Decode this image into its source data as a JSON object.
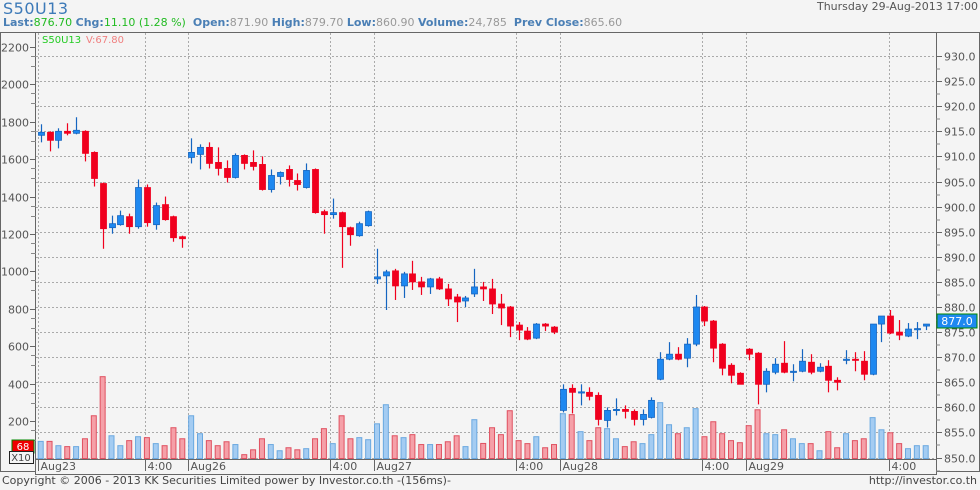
{
  "header": {
    "symbol": "S50U13",
    "last_label": "Last:",
    "last": "876.70",
    "chg_label": "Chg:",
    "chg": "11.10 (1.28 %)",
    "open_label": "Open:",
    "open": "871.90",
    "high_label": "High:",
    "high": "879.70",
    "low_label": "Low:",
    "low": "860.90",
    "volume_label": "Volume:",
    "volume": "24,785",
    "prev_label": "Prev Close:",
    "prev": "865.60",
    "datetime": "Thursday 29-Aug-2013 17:00"
  },
  "legend": {
    "symbol": "S50U13",
    "volume": "V:67.80"
  },
  "left_badge": {
    "value": "68",
    "multiplier": "X10"
  },
  "price_badge": "877.0",
  "footer": {
    "copyright": "Copyright © 2006 - 2013 KK Securities Limited power by Investor.co.th  -(156ms)-",
    "url": "http://investor.co.th"
  },
  "colors": {
    "up": "#1e88f0",
    "up_border": "#1565c0",
    "down": "#f0001e",
    "down_border": "#c8001a",
    "vol_up": "#a4ccf2",
    "vol_up_border": "#6aa8e0",
    "vol_down": "#f5a0a8",
    "vol_down_border": "#e05060"
  },
  "chart_data": {
    "type": "candlestick",
    "price_axis": {
      "ticks": [
        "930.0",
        "925.0",
        "920.0",
        "915.0",
        "910.0",
        "905.0",
        "900.0",
        "895.0",
        "890.0",
        "885.0",
        "880.0",
        "875.0",
        "870.0",
        "865.0",
        "860.0",
        "855.0",
        "850.0"
      ],
      "range": [
        850,
        930
      ]
    },
    "volume_axis": {
      "ticks": [
        "2200",
        "2000",
        "1800",
        "1600",
        "1400",
        "1200",
        "1000",
        "800",
        "600",
        "400",
        "200"
      ],
      "range": [
        0,
        2200
      ]
    },
    "time_labels": [
      {
        "label": "Aug23",
        "at": 0
      },
      {
        "label": "4:00",
        "at": 12.1
      },
      {
        "label": "Aug26",
        "at": 17
      },
      {
        "label": "4:00",
        "at": 33
      },
      {
        "label": "Aug27",
        "at": 38
      },
      {
        "label": "4:00",
        "at": 54
      },
      {
        "label": "Aug28",
        "at": 59
      },
      {
        "label": "4:00",
        "at": 75.1
      },
      {
        "label": "Aug29",
        "at": 80
      },
      {
        "label": "4:00",
        "at": 96.2
      }
    ],
    "ohlcv": [
      [
        914.2,
        916.4,
        912.8,
        914.8,
        91
      ],
      [
        914.8,
        915.0,
        911.0,
        913.2,
        91
      ],
      [
        913.2,
        915.6,
        911.6,
        915.0,
        68
      ],
      [
        915.0,
        916.6,
        914.2,
        914.6,
        63
      ],
      [
        914.6,
        917.8,
        914.4,
        915.2,
        63
      ],
      [
        915.0,
        915.2,
        909.0,
        910.6,
        105
      ],
      [
        910.8,
        911.0,
        904.0,
        905.6,
        228
      ],
      [
        904.6,
        904.8,
        891.6,
        895.6,
        437
      ],
      [
        895.8,
        898.2,
        894.6,
        896.6,
        121
      ],
      [
        896.4,
        899.2,
        896.2,
        898.2,
        68
      ],
      [
        898.0,
        898.6,
        894.6,
        896.0,
        95
      ],
      [
        896.0,
        905.4,
        895.6,
        903.8,
        116
      ],
      [
        903.8,
        904.4,
        896.0,
        896.8,
        111
      ],
      [
        896.4,
        900.8,
        895.4,
        900.2,
        79
      ],
      [
        900.4,
        902.0,
        897.2,
        897.4,
        68
      ],
      [
        898.0,
        898.2,
        893.0,
        893.8,
        164
      ],
      [
        894.0,
        894.2,
        891.8,
        893.6,
        105
      ],
      [
        909.8,
        913.6,
        908.6,
        910.8,
        228
      ],
      [
        910.4,
        912.4,
        907.4,
        911.8,
        132
      ],
      [
        911.8,
        912.8,
        907.6,
        908.6,
        95
      ],
      [
        908.8,
        911.8,
        906.2,
        907.6,
        68
      ],
      [
        907.6,
        909.2,
        904.8,
        905.8,
        89
      ],
      [
        905.8,
        910.6,
        905.6,
        910.2,
        74
      ],
      [
        910.2,
        910.4,
        907.4,
        908.6,
        20
      ],
      [
        908.8,
        911.2,
        907.2,
        908.0,
        46
      ],
      [
        908.4,
        910.0,
        903.2,
        903.4,
        105
      ],
      [
        903.4,
        907.4,
        902.8,
        906.2,
        74
      ],
      [
        906.0,
        907.0,
        904.4,
        906.8,
        41
      ],
      [
        907.4,
        908.2,
        904.0,
        905.4,
        57
      ],
      [
        905.2,
        906.6,
        903.2,
        904.4,
        46
      ],
      [
        903.8,
        908.6,
        903.6,
        907.2,
        52
      ],
      [
        907.4,
        907.6,
        898.6,
        898.8,
        105
      ],
      [
        899.0,
        899.4,
        894.6,
        898.4,
        159
      ],
      [
        898.4,
        901.6,
        897.6,
        898.8,
        79
      ],
      [
        898.8,
        899.0,
        887.8,
        896.0,
        228
      ],
      [
        895.8,
        896.0,
        892.2,
        894.4,
        105
      ],
      [
        894.2,
        897.0,
        894.0,
        896.6,
        111
      ],
      [
        896.2,
        899.2,
        896.0,
        899.0,
        100
      ],
      [
        885.6,
        891.6,
        884.6,
        886.0,
        185
      ],
      [
        886.2,
        887.4,
        879.4,
        887.0,
        287
      ],
      [
        887.2,
        887.6,
        881.4,
        884.2,
        121
      ],
      [
        884.2,
        887.0,
        881.8,
        886.6,
        111
      ],
      [
        886.6,
        889.2,
        883.4,
        885.0,
        127
      ],
      [
        885.0,
        886.0,
        882.4,
        884.0,
        74
      ],
      [
        884.0,
        885.8,
        882.6,
        885.6,
        74
      ],
      [
        885.6,
        886.0,
        883.4,
        883.6,
        74
      ],
      [
        883.6,
        884.6,
        880.2,
        881.6,
        89
      ],
      [
        882.0,
        882.6,
        877.0,
        881.0,
        121
      ],
      [
        881.2,
        882.2,
        880.0,
        881.8,
        63
      ],
      [
        882.6,
        887.6,
        882.0,
        884.0,
        207
      ],
      [
        884.0,
        885.0,
        881.2,
        883.6,
        80
      ],
      [
        883.6,
        885.6,
        878.6,
        880.6,
        164
      ],
      [
        880.6,
        882.6,
        876.4,
        879.8,
        127
      ],
      [
        880.0,
        880.2,
        874.0,
        876.2,
        255
      ],
      [
        876.4,
        877.0,
        873.4,
        875.4,
        95
      ],
      [
        875.2,
        876.0,
        873.4,
        873.6,
        79
      ],
      [
        873.8,
        876.8,
        873.6,
        876.6,
        116
      ],
      [
        876.6,
        876.8,
        875.2,
        876.2,
        57
      ],
      [
        876.0,
        876.2,
        874.6,
        875.0,
        74
      ],
      [
        859.4,
        864.6,
        859.0,
        863.6,
        239
      ],
      [
        863.8,
        864.6,
        858.8,
        863.0,
        234
      ],
      [
        863.0,
        864.6,
        860.4,
        863.1,
        143
      ],
      [
        863.0,
        864.0,
        861.4,
        862.2,
        95
      ],
      [
        862.4,
        863.0,
        856.4,
        857.6,
        164
      ],
      [
        857.4,
        860.0,
        856.0,
        859.4,
        159
      ],
      [
        859.5,
        861.8,
        858.4,
        859.6,
        105
      ],
      [
        859.6,
        860.4,
        857.8,
        859.2,
        63
      ],
      [
        859.2,
        859.6,
        856.4,
        857.6,
        89
      ],
      [
        857.6,
        859.6,
        856.4,
        858.6,
        79
      ],
      [
        858.0,
        862.0,
        857.8,
        861.4,
        127
      ],
      [
        865.6,
        871.0,
        865.4,
        869.6,
        298
      ],
      [
        869.6,
        873.0,
        869.4,
        870.6,
        180
      ],
      [
        870.6,
        872.0,
        869.4,
        869.6,
        132
      ],
      [
        869.8,
        873.8,
        868.0,
        872.6,
        164
      ],
      [
        872.6,
        882.4,
        872.2,
        880.0,
        266
      ],
      [
        880.0,
        880.2,
        876.2,
        877.2,
        116
      ],
      [
        877.2,
        877.4,
        869.0,
        871.8,
        196
      ],
      [
        872.6,
        872.8,
        866.4,
        867.8,
        132
      ],
      [
        868.4,
        868.8,
        864.8,
        866.4,
        95
      ],
      [
        866.8,
        867.0,
        864.6,
        864.6,
        84
      ],
      [
        871.6,
        871.8,
        869.4,
        870.6,
        175
      ],
      [
        870.8,
        871.0,
        860.6,
        864.6,
        260
      ],
      [
        864.6,
        867.8,
        863.0,
        867.2,
        132
      ],
      [
        867.0,
        869.8,
        866.6,
        868.6,
        127
      ],
      [
        868.8,
        873.2,
        866.8,
        867.0,
        153
      ],
      [
        867.1,
        868.6,
        865.2,
        867.2,
        105
      ],
      [
        867.2,
        871.6,
        867.0,
        869.2,
        79
      ],
      [
        869.0,
        870.6,
        866.6,
        867.0,
        79
      ],
      [
        867.2,
        868.8,
        867.0,
        868.0,
        41
      ],
      [
        868.2,
        869.4,
        863.0,
        865.4,
        143
      ],
      [
        865.4,
        866.0,
        863.4,
        865.0,
        57
      ],
      [
        869.5,
        871.4,
        868.6,
        869.6,
        132
      ],
      [
        869.6,
        871.0,
        867.2,
        869.4,
        95
      ],
      [
        869.2,
        871.2,
        865.4,
        866.6,
        105
      ],
      [
        866.6,
        876.6,
        866.4,
        876.6,
        218
      ],
      [
        876.6,
        878.2,
        873.0,
        878.2,
        153
      ],
      [
        878.2,
        879.4,
        874.6,
        874.8,
        137
      ],
      [
        875.0,
        877.4,
        873.4,
        874.4,
        79
      ],
      [
        874.2,
        876.8,
        874.0,
        875.6,
        52
      ],
      [
        875.6,
        877.0,
        873.6,
        875.7,
        68
      ],
      [
        876.2,
        876.6,
        875.4,
        876.6,
        68
      ]
    ]
  }
}
